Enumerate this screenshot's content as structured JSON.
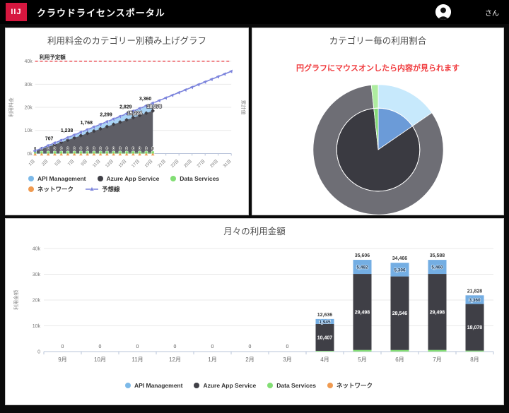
{
  "header": {
    "logo": "IIJ",
    "title": "クラウドライセンスポータル",
    "user_suffix": "さん"
  },
  "colors": {
    "brand_red": "#D6173F",
    "header_bg": "#000000",
    "note_red": "#F0393C",
    "planned_red": "#E8262D",
    "api": "#7CB9E8",
    "api_area": "#A9D4F5",
    "azure": "#3F3F46",
    "azure_area": "#5E5E66",
    "data": "#82DE74",
    "network": "#F09A50",
    "forecast": "#7B83DC"
  },
  "chart_data": [
    {
      "name": "daily-cumulative-stacked-area",
      "type": "area",
      "title": "利用料金のカテゴリー別積み上げグラフ",
      "ylabel_left": "利用料金",
      "ylabel_right": "累計値",
      "planned_label": "利用予定額",
      "planned_value": 40000,
      "ylim": [
        0,
        40000
      ],
      "yticks": [
        "0k",
        "10k",
        "20k",
        "30k",
        "40k"
      ],
      "xticks": [
        "1日",
        "3日",
        "5日",
        "7日",
        "9日",
        "11日",
        "13日",
        "15日",
        "17日",
        "19日",
        "21日",
        "23日",
        "25日",
        "27日",
        "29日",
        "31日"
      ],
      "days_total": 31,
      "days_with_data": 19,
      "series": [
        {
          "name": "ネットワーク",
          "per_day": 1.6,
          "fill": "#F09A50"
        },
        {
          "name": "Data Services",
          "per_day": 18.9,
          "fill": "#82DE74"
        },
        {
          "name": "Azure App Service",
          "per_day": 951.5,
          "fill": "#5E5E66"
        },
        {
          "name": "API Management",
          "per_day": 176.8,
          "fill": "#A9D4F5"
        }
      ],
      "api_labels": [
        {
          "day": 4,
          "text": "707"
        },
        {
          "day": 7,
          "text": "1,238"
        },
        {
          "day": 10,
          "text": "1,768"
        },
        {
          "day": 13,
          "text": "2,299"
        },
        {
          "day": 16,
          "text": "2,829"
        },
        {
          "day": 19,
          "text": "3,360"
        }
      ],
      "azure_labels": [
        {
          "day": 16,
          "text": "15,224"
        },
        {
          "day": 19,
          "text": "18,078"
        }
      ],
      "zero_label": "0",
      "forecast": {
        "name": "予想線",
        "per_day": 1148.8,
        "end_day": 31,
        "end_value": 35613
      },
      "legend": [
        {
          "label": "API Management",
          "color": "#7CB9E8"
        },
        {
          "label": "Azure App Service",
          "color": "#3F3F46"
        },
        {
          "label": "Data Services",
          "color": "#82DE74"
        },
        {
          "label": "ネットワーク",
          "color": "#F09A50"
        },
        {
          "label": "予想線",
          "color": "#7B83DC",
          "marker": "line"
        }
      ]
    },
    {
      "name": "category-share-double-donut",
      "type": "pie",
      "title": "カテゴリー毎の利用割合",
      "note": "円グラフにマウスオンしたら内容が見られます",
      "slices": [
        {
          "label": "API Management",
          "pct": 15.4,
          "inner_color": "#6B9BD8",
          "outer_color": "#C7E9FC"
        },
        {
          "label": "Azure App Service",
          "pct": 82.9,
          "inner_color": "#3A3A41",
          "outer_color": "#6E6E75"
        },
        {
          "label": "Data Services",
          "pct": 1.7,
          "inner_color": "#84D977",
          "outer_color": "#AEECA0"
        }
      ],
      "start_at": "12-oclock-clockwise"
    },
    {
      "name": "monthly-amount-stacked-bars",
      "type": "bar",
      "title": "月々の利用金額",
      "ylabel": "利用金額",
      "ylim": [
        0,
        40000
      ],
      "yticks": [
        "0",
        "10k",
        "20k",
        "30k",
        "40k"
      ],
      "categories": [
        "9月",
        "10月",
        "11月",
        "12月",
        "1月",
        "2月",
        "3月",
        "4月",
        "5月",
        "6月",
        "7月",
        "8月"
      ],
      "totals": [
        "0",
        "0",
        "0",
        "0",
        "0",
        "0",
        "0",
        "12,636",
        "35,606",
        "34,466",
        "35,588",
        "21,828"
      ],
      "series": [
        {
          "name": "ネットワーク",
          "fill": "#F09A50",
          "values": [
            0,
            0,
            0,
            0,
            0,
            0,
            0,
            26,
            28,
            34,
            30,
            30
          ]
        },
        {
          "name": "Data Services",
          "fill": "#82DE74",
          "values": [
            0,
            0,
            0,
            0,
            0,
            0,
            0,
            258,
            598,
            580,
            600,
            360
          ]
        },
        {
          "name": "Azure App Service",
          "fill": "#3F3F46",
          "label_style": "alab",
          "values": [
            0,
            0,
            0,
            0,
            0,
            0,
            0,
            10407,
            29498,
            28546,
            29498,
            18078
          ],
          "labels": [
            "",
            "",
            "",
            "",
            "",
            "",
            "",
            "10,407",
            "29,498",
            "28,546",
            "29,498",
            "18,078"
          ]
        },
        {
          "name": "API Management",
          "fill": "#74AEE3",
          "label_style": "ilab",
          "values": [
            0,
            0,
            0,
            0,
            0,
            0,
            0,
            1945,
            5482,
            5306,
            5460,
            3360
          ],
          "labels": [
            "",
            "",
            "",
            "",
            "",
            "",
            "",
            "1,945",
            "5,482",
            "5,306",
            "5,460",
            "3,360"
          ]
        }
      ],
      "legend": [
        {
          "label": "API Management",
          "color": "#7CB9E8"
        },
        {
          "label": "Azure App Service",
          "color": "#3F3F46"
        },
        {
          "label": "Data Services",
          "color": "#82DE74"
        },
        {
          "label": "ネットワーク",
          "color": "#F09A50"
        }
      ]
    }
  ]
}
